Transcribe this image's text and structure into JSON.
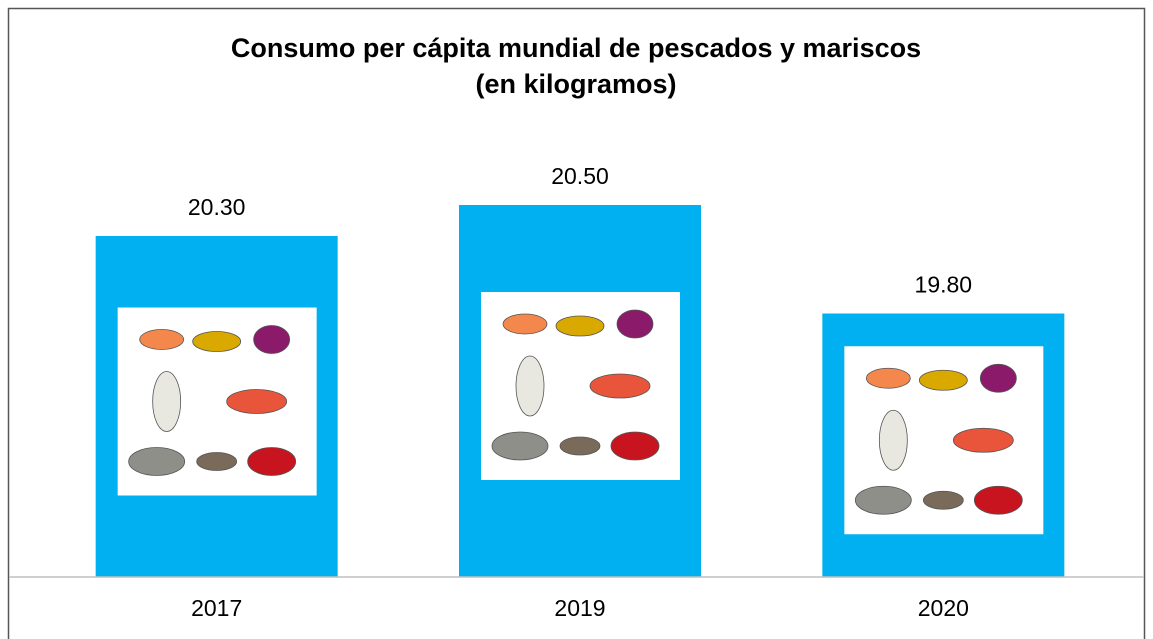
{
  "chart_data": {
    "type": "bar",
    "title": [
      "Consumo per cápita mundial de pescados y mariscos",
      "(en kilogramos)"
    ],
    "categories": [
      "2017",
      "2019",
      "2020"
    ],
    "values": [
      20.3,
      20.5,
      19.8
    ],
    "value_labels": [
      "20.30",
      "20.50",
      "19.80"
    ],
    "color": "#00b0f0",
    "ylim": [
      18.1,
      20.9
    ]
  }
}
